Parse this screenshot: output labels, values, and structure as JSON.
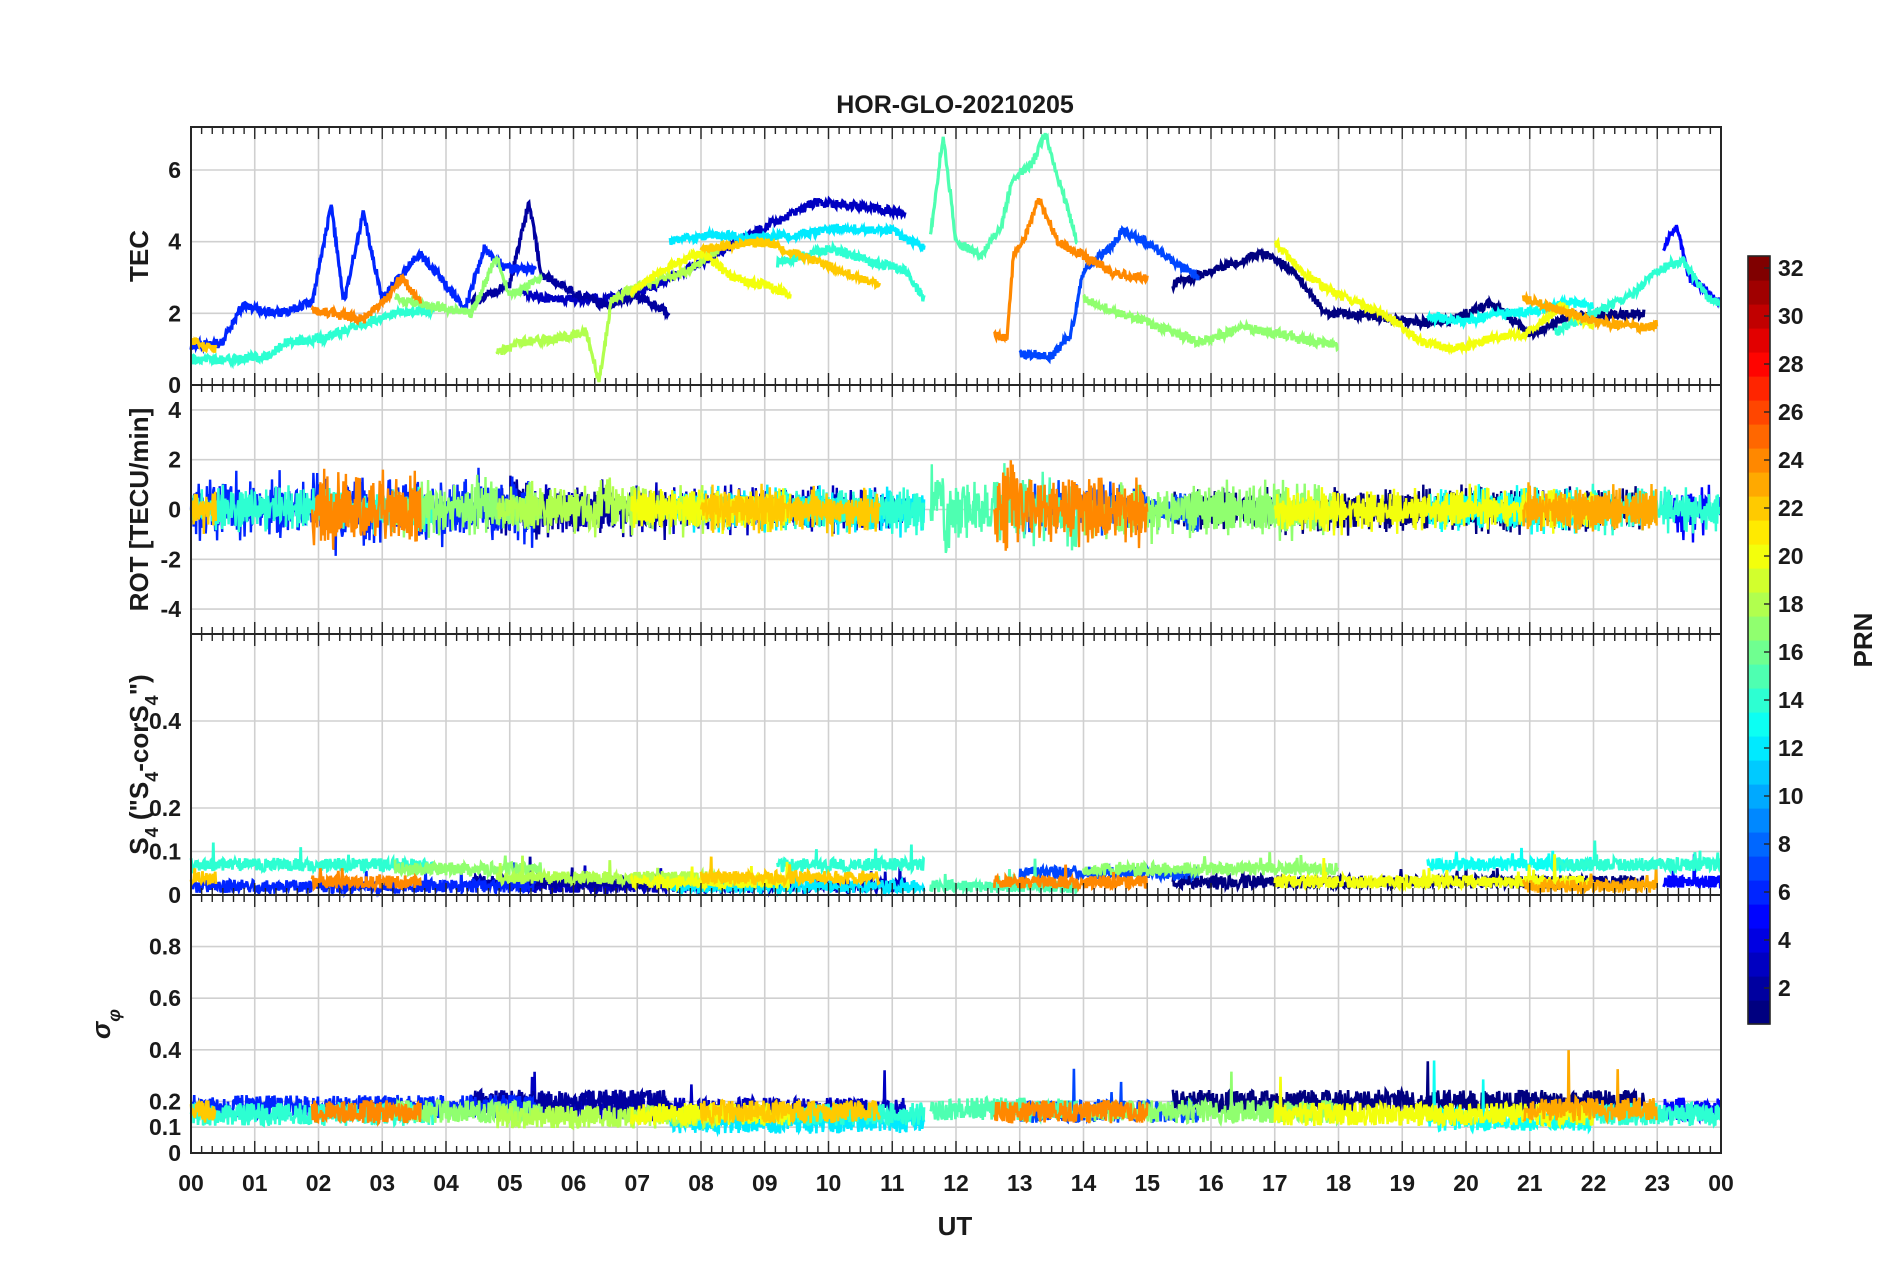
{
  "chart_data": {
    "type": "line",
    "title": "HOR-GLO-20210205",
    "xlabel": "UT",
    "xticks": [
      "00",
      "01",
      "02",
      "03",
      "04",
      "05",
      "06",
      "07",
      "08",
      "09",
      "10",
      "11",
      "12",
      "13",
      "14",
      "15",
      "16",
      "17",
      "18",
      "19",
      "20",
      "21",
      "22",
      "23",
      "00"
    ],
    "xlim": [
      0,
      24
    ],
    "panels": [
      {
        "id": "tec",
        "ylabel": "TEC",
        "ylim": [
          0,
          7.2
        ],
        "yticks": [
          0,
          2,
          4,
          6
        ],
        "ytick_labels": [
          "0",
          "2",
          "4",
          "6"
        ]
      },
      {
        "id": "rot",
        "ylabel": "ROT [TECU/min]",
        "ylim": [
          -5,
          5
        ],
        "yticks": [
          -4,
          -2,
          0,
          2,
          4
        ],
        "ytick_labels": [
          "-4",
          "-2",
          "0",
          "2",
          "4"
        ]
      },
      {
        "id": "s4",
        "ylabel": "S4 (\"S4-corS4\")",
        "ylim": [
          0,
          0.6
        ],
        "yticks": [
          0,
          0.1,
          0.2,
          0.4
        ],
        "ytick_labels": [
          "0",
          "0.1",
          "0.2",
          "0.4"
        ]
      },
      {
        "id": "sigma",
        "ylabel": "σφ",
        "ylim": [
          0,
          1
        ],
        "yticks": [
          0,
          0.1,
          0.2,
          0.4,
          0.6,
          0.8
        ],
        "ytick_labels": [
          "0",
          "0.1",
          "0.2",
          "0.4",
          "0.6",
          "0.8"
        ]
      }
    ],
    "colorbar": {
      "label": "PRN",
      "range": [
        1,
        32
      ],
      "ticks": [
        2,
        4,
        6,
        8,
        10,
        12,
        14,
        16,
        18,
        20,
        22,
        24,
        26,
        28,
        30,
        32
      ],
      "colormap": "jet"
    },
    "series": [
      {
        "prn": 3,
        "tec": [
          [
            5.2,
            2.6
          ],
          [
            5.6,
            2.4
          ],
          [
            6.5,
            2.4
          ],
          [
            7.2,
            2.7
          ],
          [
            8.2,
            3.6
          ],
          [
            9.0,
            4.4
          ],
          [
            9.8,
            5.1
          ],
          [
            10.4,
            5.0
          ],
          [
            11.2,
            4.8
          ]
        ],
        "rot_amp": 0.3,
        "s4_base": 0.02,
        "sig_base": 0.17
      },
      {
        "prn": 2,
        "tec": [
          [
            4.4,
            2.3
          ],
          [
            5.0,
            2.8
          ],
          [
            5.3,
            5.1
          ],
          [
            5.5,
            3.1
          ],
          [
            6.0,
            2.6
          ],
          [
            6.5,
            2.2
          ],
          [
            7.0,
            2.5
          ],
          [
            7.5,
            2.0
          ]
        ],
        "rot_amp": 0.5,
        "s4_base": 0.03,
        "sig_base": 0.2
      },
      {
        "prn": 1,
        "tec": [
          [
            15.4,
            2.8
          ],
          [
            16.2,
            3.3
          ],
          [
            16.8,
            3.7
          ],
          [
            17.3,
            3.2
          ],
          [
            17.8,
            2.0
          ],
          [
            18.6,
            1.9
          ],
          [
            19.6,
            1.7
          ],
          [
            20.4,
            2.3
          ],
          [
            21.0,
            1.4
          ],
          [
            21.6,
            1.9
          ],
          [
            22.8,
            2.0
          ]
        ],
        "rot_amp": 0.2,
        "s4_base": 0.03,
        "sig_base": 0.2
      },
      {
        "prn": 6,
        "tec": [
          [
            0.0,
            1.1
          ],
          [
            0.5,
            1.2
          ],
          [
            0.8,
            2.2
          ],
          [
            1.4,
            2.0
          ],
          [
            1.9,
            2.3
          ],
          [
            2.2,
            5.0
          ],
          [
            2.4,
            2.3
          ],
          [
            2.7,
            4.8
          ],
          [
            3.0,
            2.4
          ],
          [
            3.6,
            3.7
          ],
          [
            4.3,
            2.1
          ],
          [
            4.6,
            3.8
          ],
          [
            4.9,
            3.3
          ],
          [
            5.4,
            3.2
          ]
        ],
        "rot_amp": 0.9,
        "s4_base": 0.02,
        "sig_base": 0.18
      },
      {
        "prn": 7,
        "tec": [
          [
            13.0,
            0.9
          ],
          [
            13.5,
            0.8
          ],
          [
            13.8,
            1.4
          ],
          [
            14.0,
            3.2
          ],
          [
            14.4,
            3.8
          ],
          [
            14.6,
            4.3
          ],
          [
            15.0,
            4.0
          ],
          [
            15.3,
            3.6
          ],
          [
            15.8,
            3.0
          ]
        ],
        "rot_amp": 0.5,
        "s4_base": 0.05,
        "sig_base": 0.16
      },
      {
        "prn": 5,
        "tec": [
          [
            23.1,
            3.8
          ],
          [
            23.3,
            4.5
          ],
          [
            23.5,
            3.0
          ],
          [
            24.0,
            2.3
          ]
        ],
        "rot_amp": 0.6,
        "s4_base": 0.03,
        "sig_base": 0.17
      },
      {
        "prn": 12,
        "tec": [
          [
            7.5,
            4.0
          ],
          [
            8.2,
            4.2
          ],
          [
            8.8,
            4.1
          ],
          [
            9.5,
            4.2
          ],
          [
            10.2,
            4.4
          ],
          [
            11.0,
            4.3
          ],
          [
            11.5,
            3.8
          ]
        ],
        "rot_amp": 0.25,
        "s4_base": 0.02,
        "sig_base": 0.12
      },
      {
        "prn": 13,
        "tec": [
          [
            19.4,
            1.9
          ],
          [
            20.0,
            1.8
          ],
          [
            20.6,
            2.0
          ],
          [
            21.2,
            2.1
          ],
          [
            21.6,
            2.3
          ],
          [
            22.0,
            2.2
          ]
        ],
        "rot_amp": 0.2,
        "s4_base": 0.07,
        "sig_base": 0.13
      },
      {
        "prn": 14,
        "tec": [
          [
            0.0,
            0.7
          ],
          [
            0.6,
            0.7
          ],
          [
            1.2,
            0.8
          ],
          [
            1.5,
            1.2
          ],
          [
            2.1,
            1.3
          ],
          [
            2.5,
            1.6
          ],
          [
            3.2,
            2.0
          ],
          [
            3.8,
            2.1
          ],
          [
            9.2,
            3.4
          ],
          [
            10.0,
            3.8
          ],
          [
            10.8,
            3.4
          ],
          [
            11.2,
            3.2
          ],
          [
            11.5,
            2.4
          ],
          [
            21.4,
            1.5
          ],
          [
            22.0,
            2.0
          ],
          [
            22.6,
            2.5
          ],
          [
            23.0,
            3.2
          ],
          [
            23.4,
            3.5
          ],
          [
            23.8,
            2.4
          ],
          [
            24.0,
            2.3
          ]
        ],
        "rot_amp": 0.3,
        "s4_base": 0.07,
        "sig_base": 0.15
      },
      {
        "prn": 15,
        "tec": [
          [
            11.6,
            4.2
          ],
          [
            11.8,
            7.0
          ],
          [
            12.0,
            4.0
          ],
          [
            12.4,
            3.6
          ],
          [
            12.7,
            4.4
          ],
          [
            12.9,
            5.8
          ],
          [
            13.2,
            6.2
          ],
          [
            13.4,
            7.0
          ],
          [
            13.6,
            5.8
          ],
          [
            13.9,
            4.0
          ]
        ],
        "rot_amp": 1.2,
        "s4_base": 0.02,
        "sig_base": 0.17
      },
      {
        "prn": 17,
        "tec": [
          [
            3.2,
            2.4
          ],
          [
            3.8,
            2.2
          ],
          [
            4.4,
            2.0
          ],
          [
            4.8,
            3.6
          ],
          [
            5.0,
            2.5
          ],
          [
            5.5,
            3.0
          ],
          [
            14.0,
            2.4
          ],
          [
            14.6,
            2.0
          ],
          [
            15.2,
            1.6
          ],
          [
            15.8,
            1.2
          ],
          [
            16.5,
            1.6
          ],
          [
            17.2,
            1.4
          ],
          [
            17.6,
            1.2
          ],
          [
            18.0,
            1.1
          ]
        ],
        "rot_amp": 0.6,
        "s4_base": 0.06,
        "sig_base": 0.16
      },
      {
        "prn": 18,
        "tec": [
          [
            4.8,
            0.9
          ],
          [
            5.2,
            1.2
          ],
          [
            5.8,
            1.3
          ],
          [
            6.2,
            1.5
          ],
          [
            6.4,
            0.1
          ],
          [
            6.6,
            2.4
          ],
          [
            7.2,
            2.9
          ],
          [
            7.8,
            3.2
          ],
          [
            8.3,
            3.8
          ]
        ],
        "rot_amp": 0.5,
        "s4_base": 0.04,
        "sig_base": 0.14
      },
      {
        "prn": 20,
        "tec": [
          [
            6.9,
            2.6
          ],
          [
            7.5,
            3.3
          ],
          [
            8.0,
            3.7
          ],
          [
            8.5,
            3.0
          ],
          [
            9.0,
            2.8
          ],
          [
            9.4,
            2.5
          ],
          [
            17.0,
            4.0
          ],
          [
            17.4,
            3.2
          ],
          [
            17.9,
            2.6
          ],
          [
            18.4,
            2.2
          ],
          [
            18.8,
            1.9
          ],
          [
            19.3,
            1.2
          ],
          [
            19.8,
            1.0
          ],
          [
            20.4,
            1.3
          ],
          [
            20.9,
            1.4
          ],
          [
            21.5,
            2.2
          ],
          [
            22.0,
            1.6
          ]
        ],
        "rot_amp": 0.2,
        "s4_base": 0.03,
        "sig_base": 0.15
      },
      {
        "prn": 22,
        "tec": [
          [
            0.0,
            1.2
          ],
          [
            0.4,
            1.0
          ],
          [
            8.0,
            3.8
          ],
          [
            9.0,
            4.0
          ],
          [
            9.6,
            3.6
          ],
          [
            10.2,
            3.2
          ],
          [
            10.8,
            2.8
          ]
        ],
        "rot_amp": 0.3,
        "s4_base": 0.04,
        "sig_base": 0.16
      },
      {
        "prn": 23,
        "tec": [
          [
            20.9,
            2.4
          ],
          [
            21.3,
            2.2
          ],
          [
            21.8,
            1.9
          ],
          [
            22.3,
            1.7
          ],
          [
            22.8,
            1.6
          ],
          [
            23.0,
            1.7
          ]
        ],
        "rot_amp": 0.25,
        "s4_base": 0.02,
        "sig_base": 0.17
      },
      {
        "prn": 24,
        "tec": [
          [
            1.9,
            2.1
          ],
          [
            2.3,
            2.0
          ],
          [
            2.7,
            1.8
          ],
          [
            3.1,
            2.5
          ],
          [
            3.3,
            3.0
          ],
          [
            3.6,
            2.3
          ],
          [
            12.6,
            1.4
          ],
          [
            12.8,
            1.3
          ],
          [
            12.9,
            3.6
          ],
          [
            13.1,
            4.2
          ],
          [
            13.3,
            5.2
          ],
          [
            13.6,
            4.0
          ],
          [
            14.0,
            3.6
          ],
          [
            14.5,
            3.1
          ],
          [
            15.0,
            3.0
          ]
        ],
        "rot_amp": 1.2,
        "s4_base": 0.03,
        "sig_base": 0.16
      }
    ]
  }
}
